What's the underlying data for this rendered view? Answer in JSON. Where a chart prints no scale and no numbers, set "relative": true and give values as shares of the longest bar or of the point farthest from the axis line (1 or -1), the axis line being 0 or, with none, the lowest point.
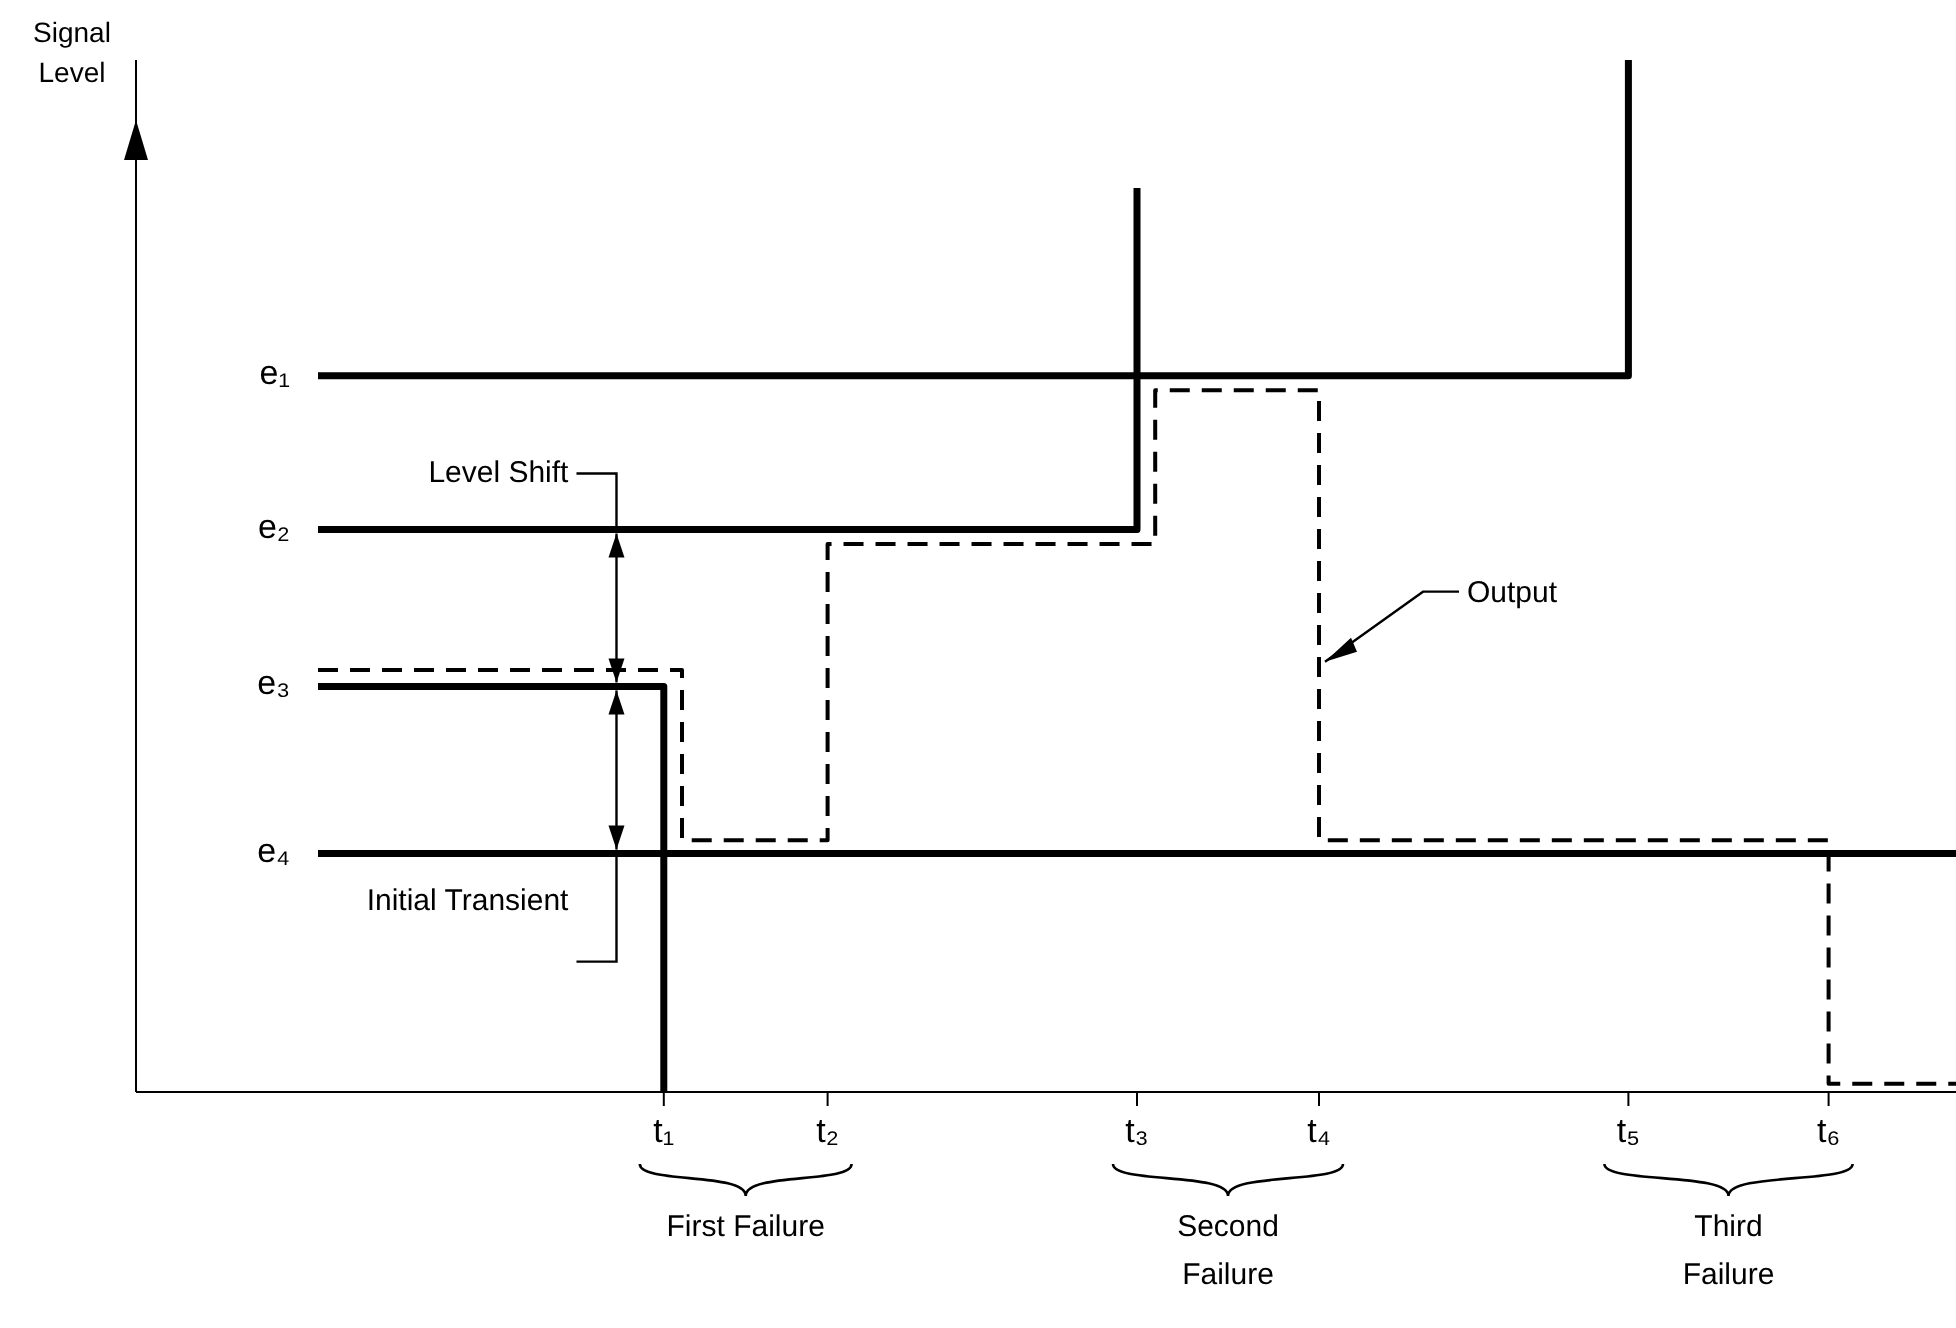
{
  "chart_data": {
    "type": "step",
    "ylabel": "Signal Level",
    "relative": true,
    "categories": [
      null,
      null,
      null,
      null,
      null,
      null,
      null,
      null,
      null,
      null,
      null,
      null,
      null,
      null,
      null,
      null,
      null,
      null,
      null,
      null,
      null,
      null,
      null,
      null,
      null,
      null,
      null,
      null,
      null,
      "t₁",
      null,
      null,
      null,
      null,
      null,
      null,
      null,
      null,
      "t₂",
      null,
      null,
      null,
      null,
      null,
      null,
      null,
      null,
      null,
      null,
      null,
      null,
      null,
      null,
      null,
      null,
      "t₃",
      null,
      null,
      null,
      null,
      null,
      null,
      null,
      null,
      null,
      "t₄",
      null,
      null,
      null,
      null,
      null,
      null,
      null,
      null,
      null,
      null,
      null,
      null,
      null,
      null,
      null,
      null,
      "t₅",
      null,
      null,
      null,
      null,
      null,
      null,
      null,
      null,
      null,
      null,
      "t₆",
      null,
      null,
      null,
      null,
      null,
      null,
      null
    ],
    "series": [
      {
        "color": "#000000",
        "line_style": "solid",
        "values": [
          null,
          null,
          null,
          null,
          null,
          null,
          null,
          null,
          null,
          null,
          0.694,
          0.694,
          0.694,
          0.694,
          0.694,
          0.694,
          0.694,
          0.694,
          0.694,
          0.694,
          0.694,
          0.694,
          0.694,
          0.694,
          0.694,
          0.694,
          0.694,
          0.694,
          0.694,
          0.694,
          0.694,
          0.694,
          0.694,
          0.694,
          0.694,
          0.694,
          0.694,
          0.694,
          0.694,
          0.694,
          0.694,
          0.694,
          0.694,
          0.694,
          0.694,
          0.694,
          0.694,
          0.694,
          0.694,
          0.694,
          0.694,
          0.694,
          0.694,
          0.694,
          0.694,
          0.694,
          0.694,
          0.694,
          0.694,
          0.694,
          0.694,
          0.694,
          0.694,
          0.694,
          0.694,
          0.694,
          0.694,
          0.694,
          0.694,
          0.694,
          0.694,
          0.694,
          0.694,
          0.694,
          0.694,
          0.694,
          0.694,
          0.694,
          0.694,
          0.694,
          0.694,
          0.694,
          1.0,
          null,
          null,
          null,
          null,
          null,
          null,
          null,
          null,
          null,
          null,
          null,
          null,
          null,
          null,
          null,
          null,
          null,
          null
        ]
      },
      {
        "color": "#000000",
        "line_style": "solid",
        "values": [
          null,
          null,
          null,
          null,
          null,
          null,
          null,
          null,
          null,
          null,
          0.545,
          0.545,
          0.545,
          0.545,
          0.545,
          0.545,
          0.545,
          0.545,
          0.545,
          0.545,
          0.545,
          0.545,
          0.545,
          0.545,
          0.545,
          0.545,
          0.545,
          0.545,
          0.545,
          0.545,
          0.545,
          0.545,
          0.545,
          0.545,
          0.545,
          0.545,
          0.545,
          0.545,
          0.545,
          0.545,
          0.545,
          0.545,
          0.545,
          0.545,
          0.545,
          0.545,
          0.545,
          0.545,
          0.545,
          0.545,
          0.545,
          0.545,
          0.545,
          0.545,
          0.545,
          0.876,
          null,
          null,
          null,
          null,
          null,
          null,
          null,
          null,
          null,
          null,
          null,
          null,
          null,
          null,
          null,
          null,
          null,
          null,
          null,
          null,
          null,
          null,
          null,
          null,
          null,
          null,
          null,
          null,
          null,
          null,
          null,
          null,
          null,
          null,
          null,
          null,
          null,
          null,
          null,
          null,
          null,
          null,
          null,
          null,
          null
        ]
      },
      {
        "color": "#000000",
        "line_style": "solid",
        "values": [
          null,
          null,
          null,
          null,
          null,
          null,
          null,
          null,
          null,
          null,
          0.393,
          0.393,
          0.393,
          0.393,
          0.393,
          0.393,
          0.393,
          0.393,
          0.393,
          0.393,
          0.393,
          0.393,
          0.393,
          0.393,
          0.393,
          0.393,
          0.393,
          0.393,
          0.393,
          0.0,
          null,
          null,
          null,
          null,
          null,
          null,
          null,
          null,
          null,
          null,
          null,
          null,
          null,
          null,
          null,
          null,
          null,
          null,
          null,
          null,
          null,
          null,
          null,
          null,
          null,
          null,
          null,
          null,
          null,
          null,
          null,
          null,
          null,
          null,
          null,
          null,
          null,
          null,
          null,
          null,
          null,
          null,
          null,
          null,
          null,
          null,
          null,
          null,
          null,
          null,
          null,
          null,
          null,
          null,
          null,
          null,
          null,
          null,
          null,
          null,
          null,
          null,
          null,
          null,
          null,
          null,
          null,
          null,
          null,
          null,
          null
        ]
      },
      {
        "color": "#000000",
        "line_style": "solid",
        "values": [
          null,
          null,
          null,
          null,
          null,
          null,
          null,
          null,
          null,
          null,
          0.231,
          0.231,
          0.231,
          0.231,
          0.231,
          0.231,
          0.231,
          0.231,
          0.231,
          0.231,
          0.231,
          0.231,
          0.231,
          0.231,
          0.231,
          0.231,
          0.231,
          0.231,
          0.231,
          0.231,
          0.231,
          0.231,
          0.231,
          0.231,
          0.231,
          0.231,
          0.231,
          0.231,
          0.231,
          0.231,
          0.231,
          0.231,
          0.231,
          0.231,
          0.231,
          0.231,
          0.231,
          0.231,
          0.231,
          0.231,
          0.231,
          0.231,
          0.231,
          0.231,
          0.231,
          0.231,
          0.231,
          0.231,
          0.231,
          0.231,
          0.231,
          0.231,
          0.231,
          0.231,
          0.231,
          0.231,
          0.231,
          0.231,
          0.231,
          0.231,
          0.231,
          0.231,
          0.231,
          0.231,
          0.231,
          0.231,
          0.231,
          0.231,
          0.231,
          0.231,
          0.231,
          0.231,
          0.231,
          0.231,
          0.231,
          0.231,
          0.231,
          0.231,
          0.231,
          0.231,
          0.231,
          0.231,
          0.231,
          0.231,
          0.231,
          0.231,
          0.231,
          0.231,
          0.231,
          0.231,
          0.231
        ]
      },
      {
        "color": "#000000",
        "line_style": "dashed",
        "values": [
          null,
          null,
          null,
          null,
          null,
          null,
          null,
          null,
          null,
          null,
          0.409,
          0.409,
          0.409,
          0.409,
          0.409,
          0.409,
          0.409,
          0.409,
          0.409,
          0.409,
          0.409,
          0.409,
          0.409,
          0.409,
          0.409,
          0.409,
          0.409,
          0.409,
          0.409,
          0.409,
          0.244,
          0.244,
          0.244,
          0.244,
          0.244,
          0.244,
          0.244,
          0.244,
          0.531,
          0.531,
          0.531,
          0.531,
          0.531,
          0.531,
          0.531,
          0.531,
          0.531,
          0.531,
          0.531,
          0.531,
          0.531,
          0.531,
          0.531,
          0.531,
          0.531,
          0.531,
          0.68,
          0.68,
          0.68,
          0.68,
          0.68,
          0.68,
          0.68,
          0.68,
          0.68,
          0.244,
          0.244,
          0.244,
          0.244,
          0.244,
          0.244,
          0.244,
          0.244,
          0.244,
          0.244,
          0.244,
          0.244,
          0.244,
          0.244,
          0.244,
          0.244,
          0.244,
          0.244,
          0.244,
          0.244,
          0.244,
          0.244,
          0.244,
          0.244,
          0.244,
          0.244,
          0.244,
          0.244,
          0.008,
          0.008,
          0.008,
          0.008,
          0.008,
          0.008,
          0.008,
          0.008
        ]
      }
    ],
    "annotations": [
      "e₁",
      "e₂",
      "e₃",
      "e₄",
      {
        "text": "Output",
        "x": "t₄",
        "y": 0.417
      },
      "Level Shift",
      "Initial Transient",
      "First Failure",
      "Second Failure",
      "Third Failure"
    ]
  }
}
